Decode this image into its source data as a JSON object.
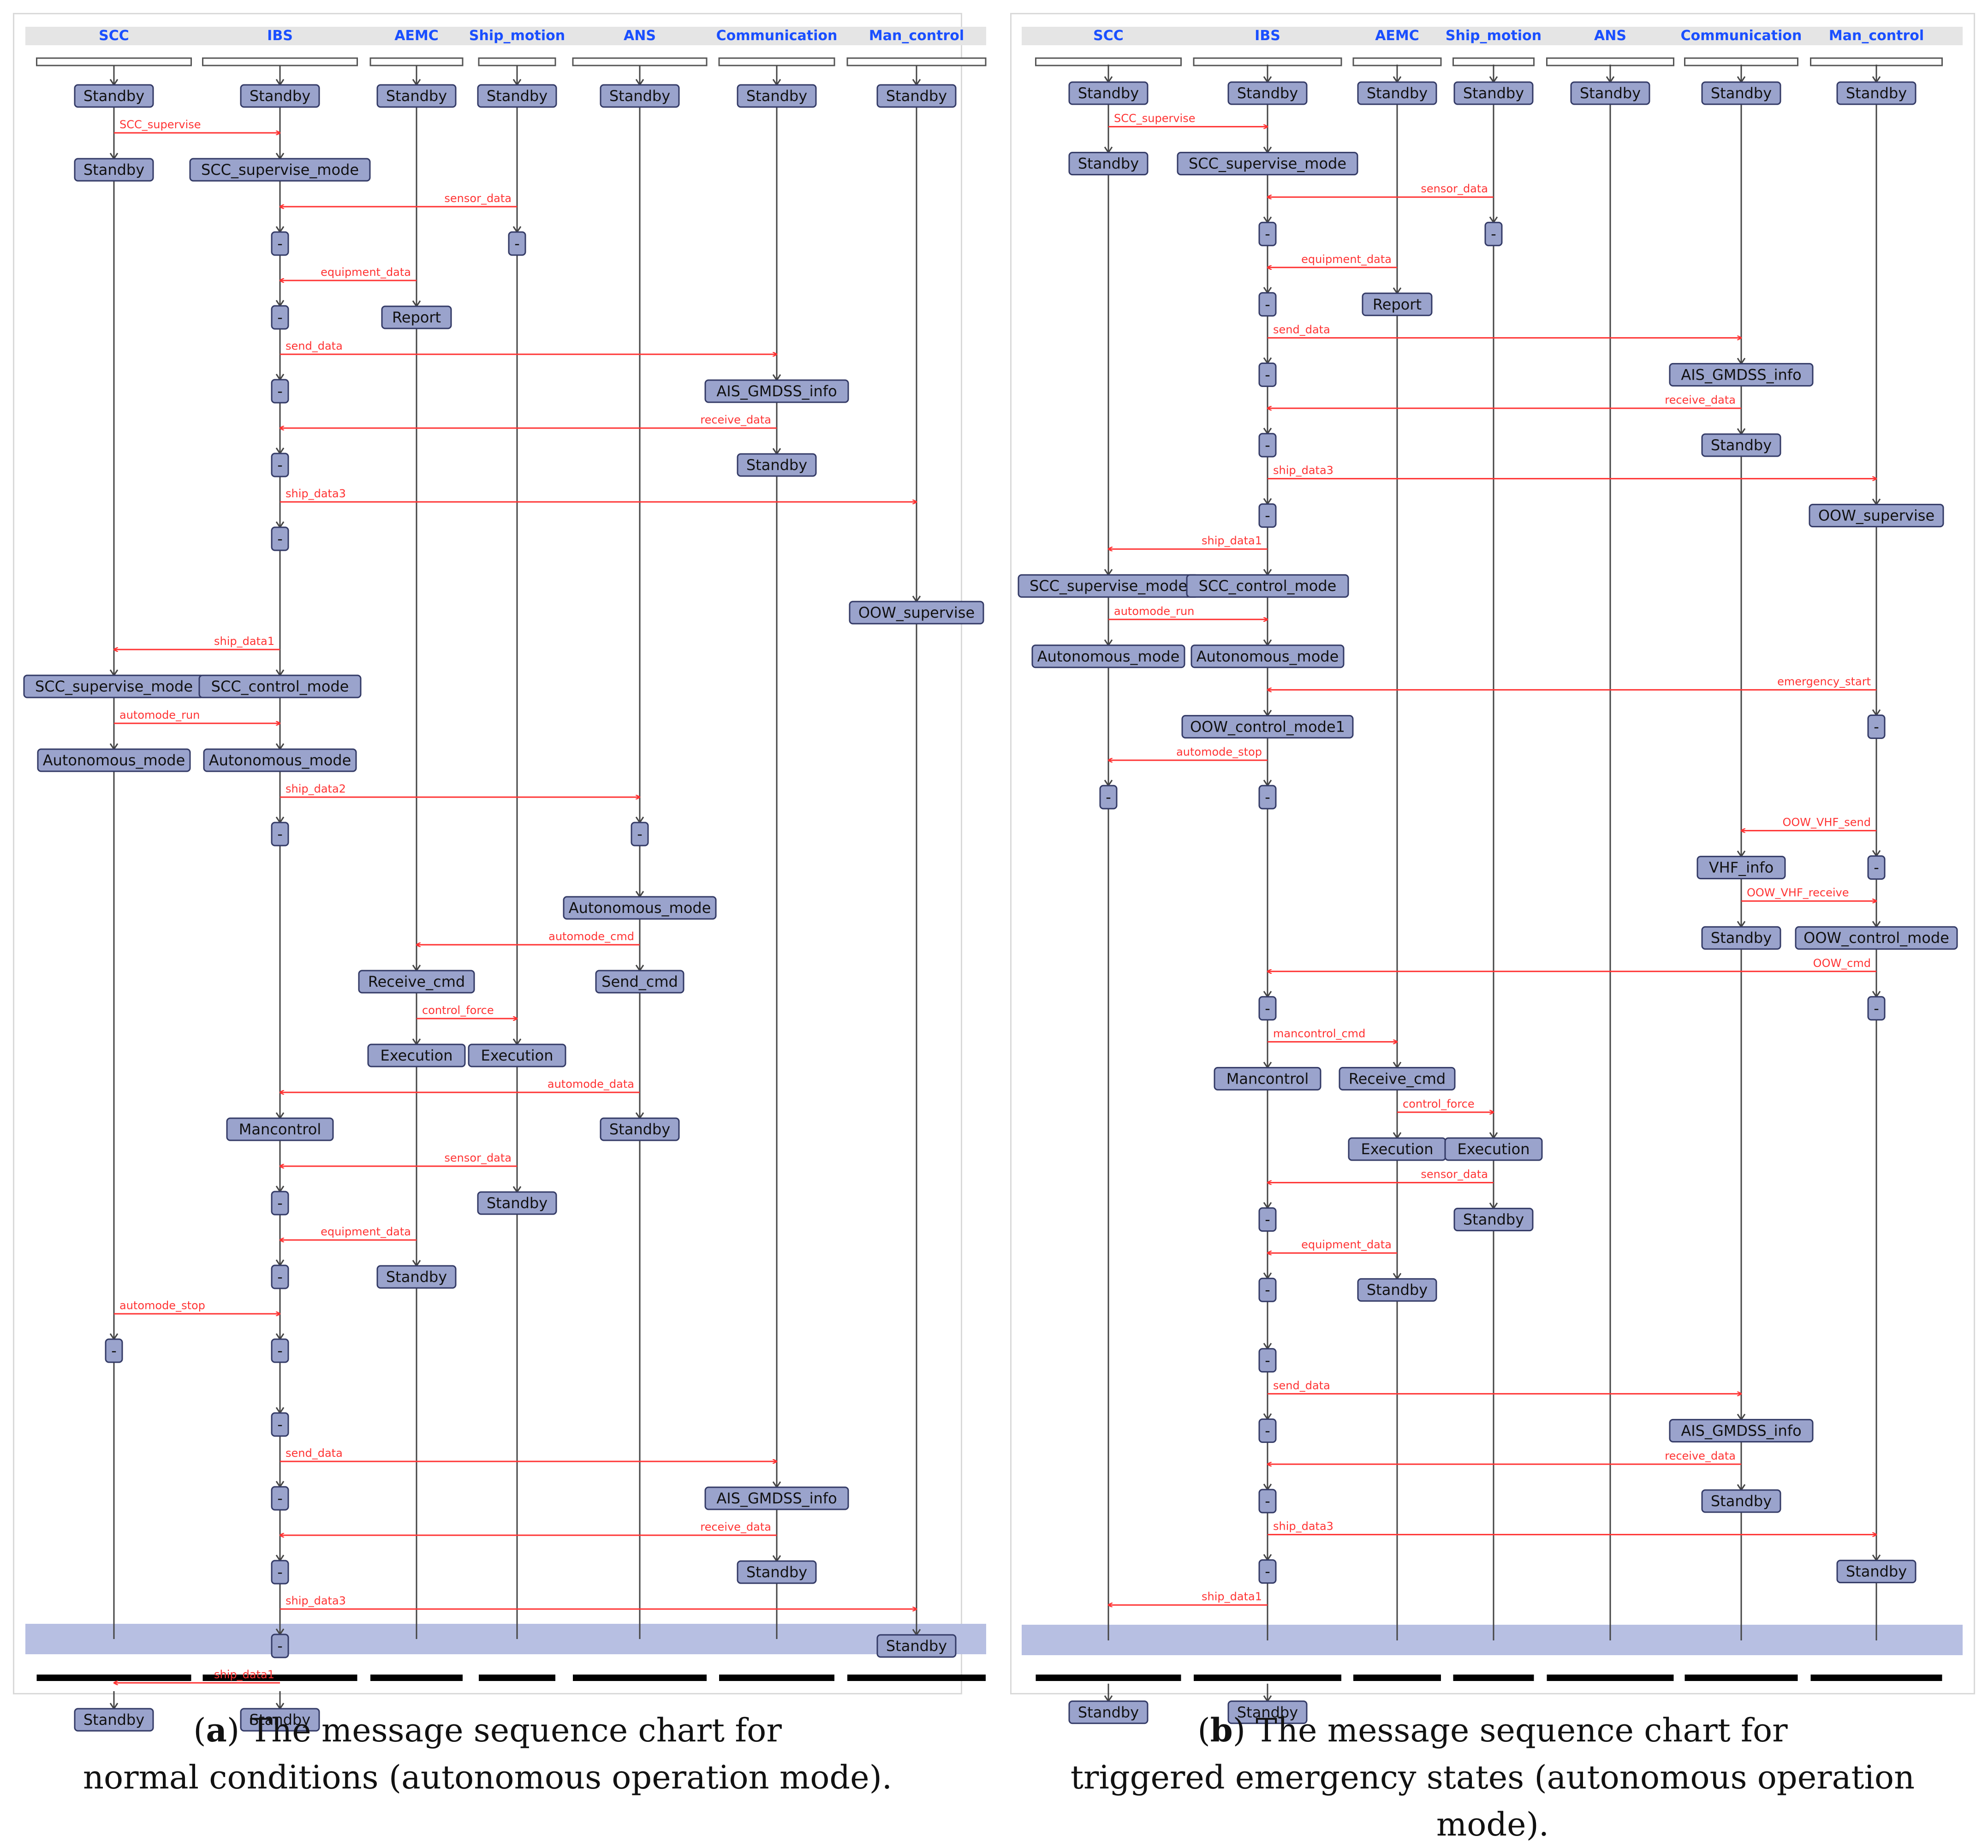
{
  "colors": {
    "message": "#ff3333",
    "actor": "#1a4fff",
    "state_fill": "#9aa3cc",
    "state_stroke": "#333a66",
    "end_band": "#b7bfe2",
    "lifeline": "#444444",
    "header_bar": "#e5e5e5"
  },
  "panels": [
    {
      "id": "a",
      "caption_letter": "a",
      "caption_line1": "The message sequence chart for",
      "caption_line2": "normal conditions (autonomous operation mode).",
      "lifelines": [
        {
          "name": "SCC",
          "states": [
            [
              1,
              "Standby"
            ],
            [
              2,
              "Standby"
            ],
            [
              9,
              "SCC_supervise_mode"
            ],
            [
              10,
              "Autonomous_mode"
            ],
            [
              18,
              "-"
            ],
            [
              23,
              "Standby"
            ]
          ]
        },
        {
          "name": "IBS",
          "states": [
            [
              1,
              "Standby"
            ],
            [
              2,
              "SCC_supervise_mode"
            ],
            [
              3,
              "-"
            ],
            [
              4,
              "-"
            ],
            [
              5,
              "-"
            ],
            [
              6,
              "-"
            ],
            [
              7,
              "-"
            ],
            [
              9,
              "SCC_control_mode"
            ],
            [
              10,
              "Autonomous_mode"
            ],
            [
              11,
              "-"
            ],
            [
              15,
              "Mancontrol"
            ],
            [
              16,
              "-"
            ],
            [
              17,
              "-"
            ],
            [
              18,
              "-"
            ],
            [
              19,
              "-"
            ],
            [
              20,
              "-"
            ],
            [
              21,
              "-"
            ],
            [
              22,
              "-"
            ],
            [
              23,
              "Standby"
            ]
          ]
        },
        {
          "name": "AEMC",
          "states": [
            [
              1,
              "Standby"
            ],
            [
              4,
              "Report"
            ],
            [
              13,
              "Receive_cmd"
            ],
            [
              14,
              "Execution"
            ],
            [
              17,
              "Standby"
            ]
          ]
        },
        {
          "name": "Ship_motion",
          "states": [
            [
              1,
              "Standby"
            ],
            [
              3,
              "-"
            ],
            [
              14,
              "Execution"
            ],
            [
              16,
              "Standby"
            ]
          ]
        },
        {
          "name": "ANS",
          "states": [
            [
              1,
              "Standby"
            ],
            [
              11,
              "-"
            ],
            [
              12,
              "Autonomous_mode"
            ],
            [
              13,
              "Send_cmd"
            ],
            [
              15,
              "Standby"
            ]
          ]
        },
        {
          "name": "Communication",
          "states": [
            [
              1,
              "Standby"
            ],
            [
              5,
              "AIS_GMDSS_info"
            ],
            [
              6,
              "Standby"
            ],
            [
              20,
              "AIS_GMDSS_info"
            ],
            [
              21,
              "Standby"
            ]
          ]
        },
        {
          "name": "Man_control",
          "states": [
            [
              1,
              "Standby"
            ],
            [
              8,
              "OOW_supervise"
            ],
            [
              22,
              "Standby"
            ]
          ]
        }
      ],
      "messages": [
        {
          "label": "SCC_supervise",
          "from": "SCC",
          "to": "IBS",
          "row": 2
        },
        {
          "label": "sensor_data",
          "from": "Ship_motion",
          "to": "IBS",
          "row": 3
        },
        {
          "label": "equipment_data",
          "from": "AEMC",
          "to": "IBS",
          "row": 4
        },
        {
          "label": "send_data",
          "from": "IBS",
          "to": "Communication",
          "row": 5
        },
        {
          "label": "receive_data",
          "from": "Communication",
          "to": "IBS",
          "row": 6
        },
        {
          "label": "ship_data3",
          "from": "IBS",
          "to": "Man_control",
          "row": 7
        },
        {
          "label": "ship_data1",
          "from": "IBS",
          "to": "SCC",
          "row": 9
        },
        {
          "label": "automode_run",
          "from": "SCC",
          "to": "IBS",
          "row": 10
        },
        {
          "label": "ship_data2",
          "from": "IBS",
          "to": "ANS",
          "row": 11
        },
        {
          "label": "automode_cmd",
          "from": "ANS",
          "to": "AEMC",
          "row": 13
        },
        {
          "label": "control_force",
          "from": "AEMC",
          "to": "Ship_motion",
          "row": 14
        },
        {
          "label": "automode_data",
          "from": "ANS",
          "to": "IBS",
          "row": 15
        },
        {
          "label": "sensor_data",
          "from": "Ship_motion",
          "to": "IBS",
          "row": 16
        },
        {
          "label": "equipment_data",
          "from": "AEMC",
          "to": "IBS",
          "row": 17
        },
        {
          "label": "automode_stop",
          "from": "SCC",
          "to": "IBS",
          "row": 18
        },
        {
          "label": "send_data",
          "from": "IBS",
          "to": "Communication",
          "row": 20
        },
        {
          "label": "receive_data",
          "from": "Communication",
          "to": "IBS",
          "row": 21
        },
        {
          "label": "ship_data3",
          "from": "IBS",
          "to": "Man_control",
          "row": 22
        },
        {
          "label": "ship_data1",
          "from": "IBS",
          "to": "SCC",
          "row": 23
        }
      ]
    },
    {
      "id": "b",
      "caption_letter": "b",
      "caption_line1": "The message sequence chart for",
      "caption_line2": "triggered emergency states (autonomous operation mode).",
      "lifelines": [
        {
          "name": "SCC",
          "states": [
            [
              1,
              "Standby"
            ],
            [
              2,
              "Standby"
            ],
            [
              8,
              "SCC_supervise_mode"
            ],
            [
              9,
              "Autonomous_mode"
            ],
            [
              11,
              "-"
            ],
            [
              24,
              "Standby"
            ]
          ]
        },
        {
          "name": "IBS",
          "states": [
            [
              1,
              "Standby"
            ],
            [
              2,
              "SCC_supervise_mode"
            ],
            [
              3,
              "-"
            ],
            [
              4,
              "-"
            ],
            [
              5,
              "-"
            ],
            [
              6,
              "-"
            ],
            [
              7,
              "-"
            ],
            [
              8,
              "SCC_control_mode"
            ],
            [
              9,
              "Autonomous_mode"
            ],
            [
              10,
              "OOW_control_mode1"
            ],
            [
              11,
              "-"
            ],
            [
              14,
              "-"
            ],
            [
              15,
              "Mancontrol"
            ],
            [
              17,
              "-"
            ],
            [
              18,
              "-"
            ],
            [
              19,
              "-"
            ],
            [
              20,
              "-"
            ],
            [
              21,
              "-"
            ],
            [
              22,
              "-"
            ],
            [
              24,
              "Standby"
            ]
          ]
        },
        {
          "name": "AEMC",
          "states": [
            [
              1,
              "Standby"
            ],
            [
              4,
              "Report"
            ],
            [
              15,
              "Receive_cmd"
            ],
            [
              16,
              "Execution"
            ],
            [
              18,
              "Standby"
            ]
          ]
        },
        {
          "name": "Ship_motion",
          "states": [
            [
              1,
              "Standby"
            ],
            [
              3,
              "-"
            ],
            [
              16,
              "Execution"
            ],
            [
              17,
              "Standby"
            ]
          ]
        },
        {
          "name": "ANS",
          "states": [
            [
              1,
              "Standby"
            ]
          ]
        },
        {
          "name": "Communication",
          "states": [
            [
              1,
              "Standby"
            ],
            [
              5,
              "AIS_GMDSS_info"
            ],
            [
              6,
              "Standby"
            ],
            [
              12,
              "VHF_info"
            ],
            [
              13,
              "Standby"
            ],
            [
              20,
              "AIS_GMDSS_info"
            ],
            [
              21,
              "Standby"
            ]
          ]
        },
        {
          "name": "Man_control",
          "states": [
            [
              1,
              "Standby"
            ],
            [
              7,
              "OOW_supervise"
            ],
            [
              10,
              "-"
            ],
            [
              12,
              "-"
            ],
            [
              13,
              "OOW_control_mode"
            ],
            [
              14,
              "-"
            ],
            [
              22,
              "Standby"
            ]
          ]
        }
      ],
      "messages": [
        {
          "label": "SCC_supervise",
          "from": "SCC",
          "to": "IBS",
          "row": 2
        },
        {
          "label": "sensor_data",
          "from": "Ship_motion",
          "to": "IBS",
          "row": 3
        },
        {
          "label": "equipment_data",
          "from": "AEMC",
          "to": "IBS",
          "row": 4
        },
        {
          "label": "send_data",
          "from": "IBS",
          "to": "Communication",
          "row": 5
        },
        {
          "label": "receive_data",
          "from": "Communication",
          "to": "IBS",
          "row": 6
        },
        {
          "label": "ship_data3",
          "from": "IBS",
          "to": "Man_control",
          "row": 7
        },
        {
          "label": "ship_data1",
          "from": "IBS",
          "to": "SCC",
          "row": 8
        },
        {
          "label": "automode_run",
          "from": "SCC",
          "to": "IBS",
          "row": 9
        },
        {
          "label": "emergency_start",
          "from": "Man_control",
          "to": "IBS",
          "row": 10
        },
        {
          "label": "automode_stop",
          "from": "IBS",
          "to": "SCC",
          "row": 11
        },
        {
          "label": "OOW_VHF_send",
          "from": "Man_control",
          "to": "Communication",
          "row": 12
        },
        {
          "label": "OOW_VHF_receive",
          "from": "Communication",
          "to": "Man_control",
          "row": 13
        },
        {
          "label": "OOW_cmd",
          "from": "Man_control",
          "to": "IBS",
          "row": 14
        },
        {
          "label": "mancontrol_cmd",
          "from": "IBS",
          "to": "AEMC",
          "row": 15
        },
        {
          "label": "control_force",
          "from": "AEMC",
          "to": "Ship_motion",
          "row": 16
        },
        {
          "label": "sensor_data",
          "from": "Ship_motion",
          "to": "IBS",
          "row": 17
        },
        {
          "label": "equipment_data",
          "from": "AEMC",
          "to": "IBS",
          "row": 18
        },
        {
          "label": "send_data",
          "from": "IBS",
          "to": "Communication",
          "row": 20
        },
        {
          "label": "receive_data",
          "from": "Communication",
          "to": "IBS",
          "row": 21
        },
        {
          "label": "ship_data3",
          "from": "IBS",
          "to": "Man_control",
          "row": 22
        },
        {
          "label": "ship_data1",
          "from": "IBS",
          "to": "SCC",
          "row": 23
        }
      ]
    }
  ]
}
